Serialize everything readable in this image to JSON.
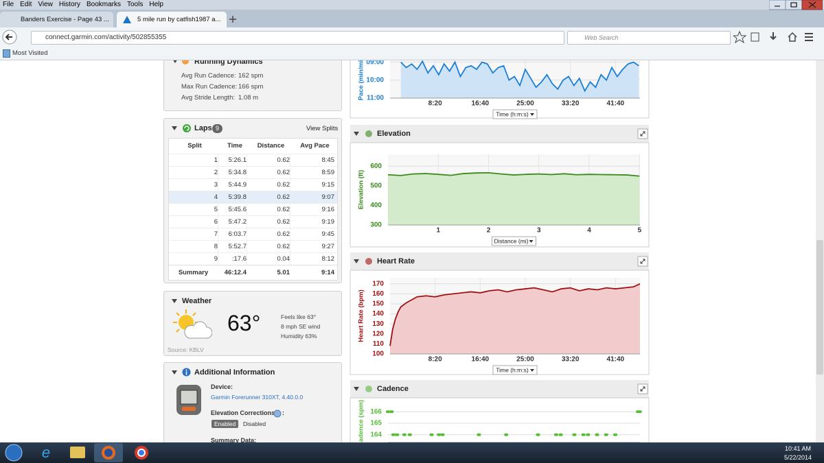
{
  "browser": {
    "menu": [
      "File",
      "Edit",
      "View",
      "History",
      "Bookmarks",
      "Tools",
      "Help"
    ],
    "tabs": [
      "Banders Exercise - Page 43 ...",
      "5 mile run by catfish1987 a..."
    ],
    "url": "connect.garmin.com/activity/502855355",
    "search_placeholder": "Web Search",
    "bookmarks": [
      "Most Visited"
    ]
  },
  "running_dynamics": {
    "title": "Running Dynamics",
    "rows": [
      [
        "Avg Run Cadence:",
        "162 spm"
      ],
      [
        "Max Run Cadence:",
        "166 spm"
      ],
      [
        "Avg Stride Length:",
        "1.08 m"
      ]
    ]
  },
  "laps": {
    "title": "Laps",
    "count": "9",
    "link": "View Splits",
    "columns": [
      "Split",
      "Time",
      "Distance",
      "Avg Pace"
    ],
    "rows": [
      [
        "1",
        "5:26.1",
        "0.62",
        "8:45"
      ],
      [
        "2",
        "5:34.8",
        "0.62",
        "8:59"
      ],
      [
        "3",
        "5:44.9",
        "0.62",
        "9:15"
      ],
      [
        "4",
        "5:39.8",
        "0.62",
        "9:07"
      ],
      [
        "5",
        "5:45.6",
        "0.62",
        "9:16"
      ],
      [
        "6",
        "5:47.2",
        "0.62",
        "9:19"
      ],
      [
        "7",
        "6:03.7",
        "0.62",
        "9:45"
      ],
      [
        "8",
        "5:52.7",
        "0.62",
        "9:27"
      ],
      [
        "9",
        ":17.6",
        "0.04",
        "8:12"
      ]
    ],
    "summary": [
      "Summary",
      "46:12.4",
      "5.01",
      "9:14"
    ]
  },
  "weather": {
    "title": "Weather",
    "temperature": "63°",
    "details": [
      "Feels like 63°",
      "8 mph SE wind",
      "Humidity 63%"
    ],
    "source": "Source: KBLV"
  },
  "additional": {
    "title": "Additional Information",
    "device_label": "Device:",
    "device": "Garmin Forerunner 310XT, 4.40.0.0",
    "elevation_label": "Elevation Corrections",
    "elevation_suffix": ":",
    "buttons": [
      "Enabled",
      "Disabled"
    ],
    "summary_label": "Summary Data:"
  },
  "charts": [
    {
      "type": "area",
      "y_label": "Pace (min/mi)",
      "x_selector": "Time (h:m:s)",
      "color": "#1a7fd4",
      "area_color": "#cfe3f7",
      "x": [
        120,
        180,
        240,
        300,
        360,
        420,
        480,
        540,
        600,
        660,
        720,
        780,
        840,
        900,
        960,
        1020,
        1080,
        1140,
        1200,
        1260,
        1320,
        1380,
        1440,
        1500,
        1560,
        1620,
        1680,
        1740,
        1800,
        1860,
        1920,
        1980,
        2040,
        2100,
        2160,
        2220,
        2280,
        2340,
        2400,
        2460,
        2520,
        2580,
        2640,
        2700,
        2760
      ],
      "values": [
        9.0,
        9.3,
        9.1,
        9.4,
        8.95,
        9.6,
        9.2,
        9.7,
        9.1,
        9.5,
        9.0,
        9.8,
        9.3,
        9.2,
        9.4,
        9.0,
        9.1,
        9.6,
        9.3,
        9.2,
        10.0,
        9.8,
        10.3,
        9.4,
        9.9,
        10.4,
        10.1,
        9.7,
        10.2,
        10.5,
        10.0,
        9.8,
        10.3,
        9.9,
        10.6,
        10.1,
        10.4,
        9.7,
        10.0,
        9.3,
        9.8,
        9.4,
        9.1,
        9.0,
        9.2
      ],
      "xlim": [
        0,
        2772
      ],
      "ylim": [
        11,
        8.9
      ],
      "xticks": [
        {
          "value": 500,
          "label": "8:20"
        },
        {
          "value": 1000,
          "label": "16:40"
        },
        {
          "value": 1500,
          "label": "25:00"
        },
        {
          "value": 2000,
          "label": "33:20"
        },
        {
          "value": 2500,
          "label": "41:40"
        }
      ],
      "yticks": [
        {
          "value": 9,
          "label": "09:00"
        },
        {
          "value": 10,
          "label": "10:00"
        },
        {
          "value": 11,
          "label": "11:00"
        }
      ],
      "grid": true
    },
    {
      "type": "area",
      "title": "Elevation",
      "y_label": "Elevation (ft)",
      "x_selector": "Distance (mi)",
      "color": "#3a8a1c",
      "area_color": "#d3ebcb",
      "x": [
        0,
        0.25,
        0.5,
        0.75,
        1,
        1.25,
        1.5,
        1.75,
        2,
        2.25,
        2.5,
        2.75,
        3,
        3.25,
        3.5,
        3.75,
        4,
        4.25,
        4.5,
        4.75,
        5
      ],
      "values": [
        556,
        552,
        560,
        562,
        558,
        553,
        562,
        565,
        566,
        560,
        555,
        558,
        560,
        557,
        561,
        556,
        558,
        557,
        556,
        555,
        549
      ],
      "xlim": [
        0,
        5.01
      ],
      "ylim": [
        300,
        660
      ],
      "xticks": [
        1,
        2,
        3,
        4,
        5
      ],
      "yticks": [
        300,
        400,
        500,
        600
      ],
      "grid": true
    },
    {
      "type": "area",
      "title": "Heart Rate",
      "y_label": "Heart Rate (bpm)",
      "x_selector": "Time (h:m:s)",
      "color": "#a01010",
      "area_color": "#f2cccc",
      "x": [
        0,
        30,
        60,
        90,
        120,
        180,
        240,
        300,
        400,
        500,
        600,
        700,
        800,
        900,
        1000,
        1100,
        1200,
        1300,
        1400,
        1500,
        1600,
        1700,
        1800,
        1900,
        2000,
        2100,
        2200,
        2300,
        2400,
        2500,
        2600,
        2700,
        2772
      ],
      "values": [
        108,
        125,
        135,
        142,
        147,
        151,
        154,
        157,
        158,
        157,
        159,
        160,
        161,
        162,
        161,
        163,
        164,
        162,
        164,
        165,
        166,
        164,
        162,
        165,
        166,
        163,
        165,
        164,
        166,
        165,
        166,
        167,
        170
      ],
      "xlim": [
        0,
        2772
      ],
      "ylim": [
        100,
        176
      ],
      "xticks": [
        {
          "value": 500,
          "label": "8:20"
        },
        {
          "value": 1000,
          "label": "16:40"
        },
        {
          "value": 1500,
          "label": "25:00"
        },
        {
          "value": 2000,
          "label": "33:20"
        },
        {
          "value": 2500,
          "label": "41:40"
        }
      ],
      "yticks": [
        100,
        110,
        120,
        130,
        140,
        150,
        160,
        170
      ],
      "grid": true
    },
    {
      "type": "scatter",
      "title": "Cadence",
      "y_label": "Cadence (spm)",
      "color": "#5bbb3c",
      "x": [
        0,
        40,
        60,
        100,
        180,
        240,
        480,
        560,
        600,
        1000,
        1300,
        1650,
        1850,
        1900,
        2050,
        2150,
        2200,
        2300,
        2400,
        2500,
        2750,
        2770
      ],
      "values": [
        166,
        166,
        164,
        164,
        164,
        164,
        164,
        164,
        164,
        164,
        164,
        164,
        164,
        164,
        164,
        164,
        164,
        164,
        164,
        164,
        166,
        166
      ],
      "xlim": [
        0,
        2772
      ],
      "ylim": [
        163.33,
        166.67
      ],
      "yticks": [
        164,
        165,
        166
      ],
      "grid": true
    }
  ],
  "taskbar": {
    "time": "10:41 AM",
    "date": "5/22/2014"
  }
}
